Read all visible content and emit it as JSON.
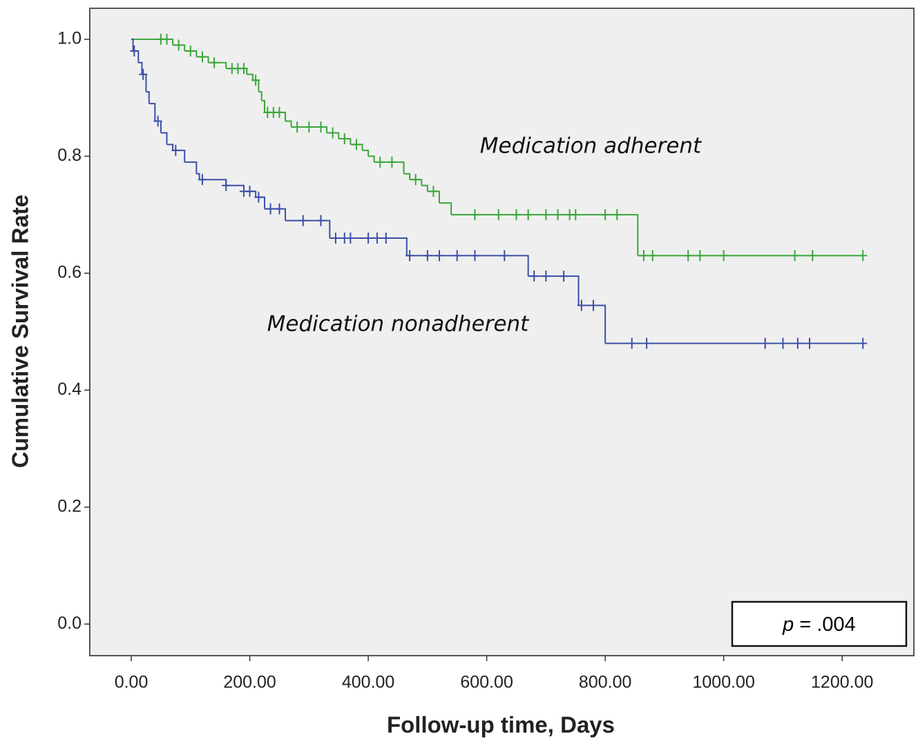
{
  "chart_data": {
    "type": "km",
    "title": null,
    "x_label": "Follow-up time, Days",
    "y_label": "Cumulative Survival Rate",
    "xlim": [
      -70,
      1321
    ],
    "ylim": [
      -0.054,
      1.053
    ],
    "xticks": [
      {
        "value": 0,
        "label": "0.00"
      },
      {
        "value": 200,
        "label": "200.00"
      },
      {
        "value": 400,
        "label": "400.00"
      },
      {
        "value": 600,
        "label": "600.00"
      },
      {
        "value": 800,
        "label": "800.00"
      },
      {
        "value": 1000,
        "label": "1000.00"
      },
      {
        "value": 1200,
        "label": "1200.00"
      }
    ],
    "yticks": [
      {
        "value": 0,
        "label": "0.0"
      },
      {
        "value": 0.2,
        "label": "0.2"
      },
      {
        "value": 0.4,
        "label": "0.4"
      },
      {
        "value": 0.6,
        "label": "0.6"
      },
      {
        "value": 0.8,
        "label": "0.8"
      },
      {
        "value": 1,
        "label": "1.0"
      }
    ],
    "p_value": [
      "p",
      "= .004"
    ],
    "series": [
      {
        "name": "Medication adherent",
        "color": "#3aa63a",
        "x": [
          0,
          70,
          90,
          110,
          130,
          160,
          195,
          205,
          215,
          220,
          225,
          260,
          270,
          330,
          350,
          370,
          390,
          400,
          410,
          460,
          470,
          490,
          500,
          520,
          540,
          855,
          1235
        ],
        "values": [
          1.0,
          0.99,
          0.98,
          0.97,
          0.96,
          0.95,
          0.94,
          0.93,
          0.91,
          0.895,
          0.875,
          0.86,
          0.85,
          0.84,
          0.83,
          0.82,
          0.81,
          0.8,
          0.79,
          0.77,
          0.76,
          0.75,
          0.74,
          0.72,
          0.7,
          0.63,
          0.63
        ],
        "censored": {
          "x": [
            50,
            60,
            80,
            100,
            120,
            140,
            170,
            180,
            190,
            210,
            230,
            240,
            250,
            280,
            300,
            320,
            340,
            360,
            380,
            420,
            440,
            480,
            510,
            580,
            620,
            650,
            670,
            700,
            720,
            740,
            750,
            800,
            820,
            865,
            880,
            940,
            960,
            1000,
            1120,
            1150,
            1235
          ],
          "values": [
            1.0,
            1.0,
            0.99,
            0.98,
            0.97,
            0.96,
            0.95,
            0.95,
            0.95,
            0.93,
            0.875,
            0.875,
            0.875,
            0.85,
            0.85,
            0.85,
            0.84,
            0.83,
            0.82,
            0.79,
            0.79,
            0.76,
            0.74,
            0.7,
            0.7,
            0.7,
            0.7,
            0.7,
            0.7,
            0.7,
            0.7,
            0.7,
            0.7,
            0.63,
            0.63,
            0.63,
            0.63,
            0.63,
            0.63,
            0.63,
            0.63
          ]
        }
      },
      {
        "name": "Medication nonadherent",
        "color": "#3a4fa6",
        "x": [
          0,
          3,
          12,
          18,
          25,
          30,
          40,
          50,
          60,
          70,
          90,
          110,
          115,
          160,
          190,
          210,
          225,
          260,
          335,
          465,
          670,
          755,
          800,
          1235
        ],
        "values": [
          1.0,
          0.98,
          0.96,
          0.94,
          0.91,
          0.89,
          0.86,
          0.84,
          0.82,
          0.81,
          0.79,
          0.77,
          0.76,
          0.75,
          0.74,
          0.73,
          0.71,
          0.69,
          0.66,
          0.63,
          0.595,
          0.545,
          0.48,
          0.48
        ],
        "censored": {
          "x": [
            5,
            20,
            45,
            75,
            120,
            160,
            190,
            200,
            215,
            235,
            250,
            290,
            320,
            345,
            360,
            370,
            400,
            415,
            430,
            470,
            500,
            520,
            550,
            580,
            630,
            680,
            700,
            730,
            760,
            780,
            845,
            870,
            1070,
            1100,
            1125,
            1145,
            1235
          ],
          "values": [
            0.98,
            0.94,
            0.86,
            0.81,
            0.76,
            0.75,
            0.74,
            0.74,
            0.73,
            0.71,
            0.71,
            0.69,
            0.69,
            0.66,
            0.66,
            0.66,
            0.66,
            0.66,
            0.66,
            0.63,
            0.63,
            0.63,
            0.63,
            0.63,
            0.63,
            0.595,
            0.595,
            0.595,
            0.545,
            0.545,
            0.48,
            0.48,
            0.48,
            0.48,
            0.48,
            0.48,
            0.48
          ]
        }
      }
    ]
  }
}
